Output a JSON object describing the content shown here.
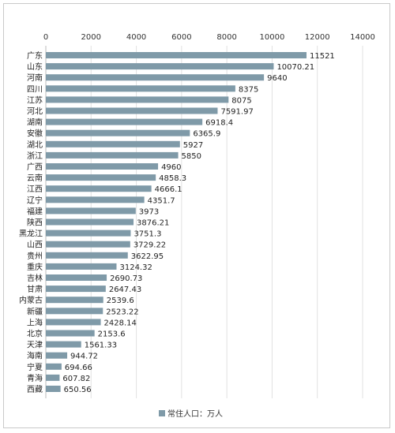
{
  "chart_data": {
    "type": "bar",
    "orientation": "horizontal",
    "x_axis_position": "top",
    "grid": true,
    "legend_placement": "bottom",
    "xlim": [
      0,
      14000
    ],
    "xticks": [
      0,
      2000,
      4000,
      6000,
      8000,
      10000,
      12000,
      14000
    ],
    "tick_labels": [
      "0",
      "2000",
      "4000",
      "6000",
      "8000",
      "10000",
      "12000",
      "14000"
    ],
    "bar_color": "#7f9aa8",
    "categories": [
      "广东",
      "山东",
      "河南",
      "四川",
      "江苏",
      "河北",
      "湖南",
      "安徽",
      "湖北",
      "浙江",
      "广西",
      "云南",
      "江西",
      "辽宁",
      "福建",
      "陕西",
      "黑龙江",
      "山西",
      "贵州",
      "重庆",
      "吉林",
      "甘肃",
      "内蒙古",
      "新疆",
      "上海",
      "北京",
      "天津",
      "海南",
      "宁夏",
      "青海",
      "西藏"
    ],
    "values": [
      11521,
      10070.21,
      9640,
      8375,
      8075,
      7591.97,
      6918.4,
      6365.9,
      5927,
      5850,
      4960,
      4858.3,
      4666.1,
      4351.7,
      3973,
      3876.21,
      3751.3,
      3729.22,
      3622.95,
      3124.32,
      2690.73,
      2647.43,
      2539.6,
      2523.22,
      2428.14,
      2153.6,
      1561.33,
      944.72,
      694.66,
      607.82,
      650.56
    ],
    "value_labels": [
      "11521",
      "10070.21",
      "9640",
      "8375",
      "8075",
      "7591.97",
      "6918.4",
      "6365.9",
      "5927",
      "5850",
      "4960",
      "4858.3",
      "4666.1",
      "4351.7",
      "3973",
      "3876.21",
      "3751.3",
      "3729.22",
      "3622.95",
      "3124.32",
      "2690.73",
      "2647.43",
      "2539.6",
      "2523.22",
      "2428.14",
      "2153.6",
      "1561.33",
      "944.72",
      "694.66",
      "607.82",
      "650.56"
    ],
    "series": [
      {
        "name": "常住人口：万人"
      }
    ]
  }
}
